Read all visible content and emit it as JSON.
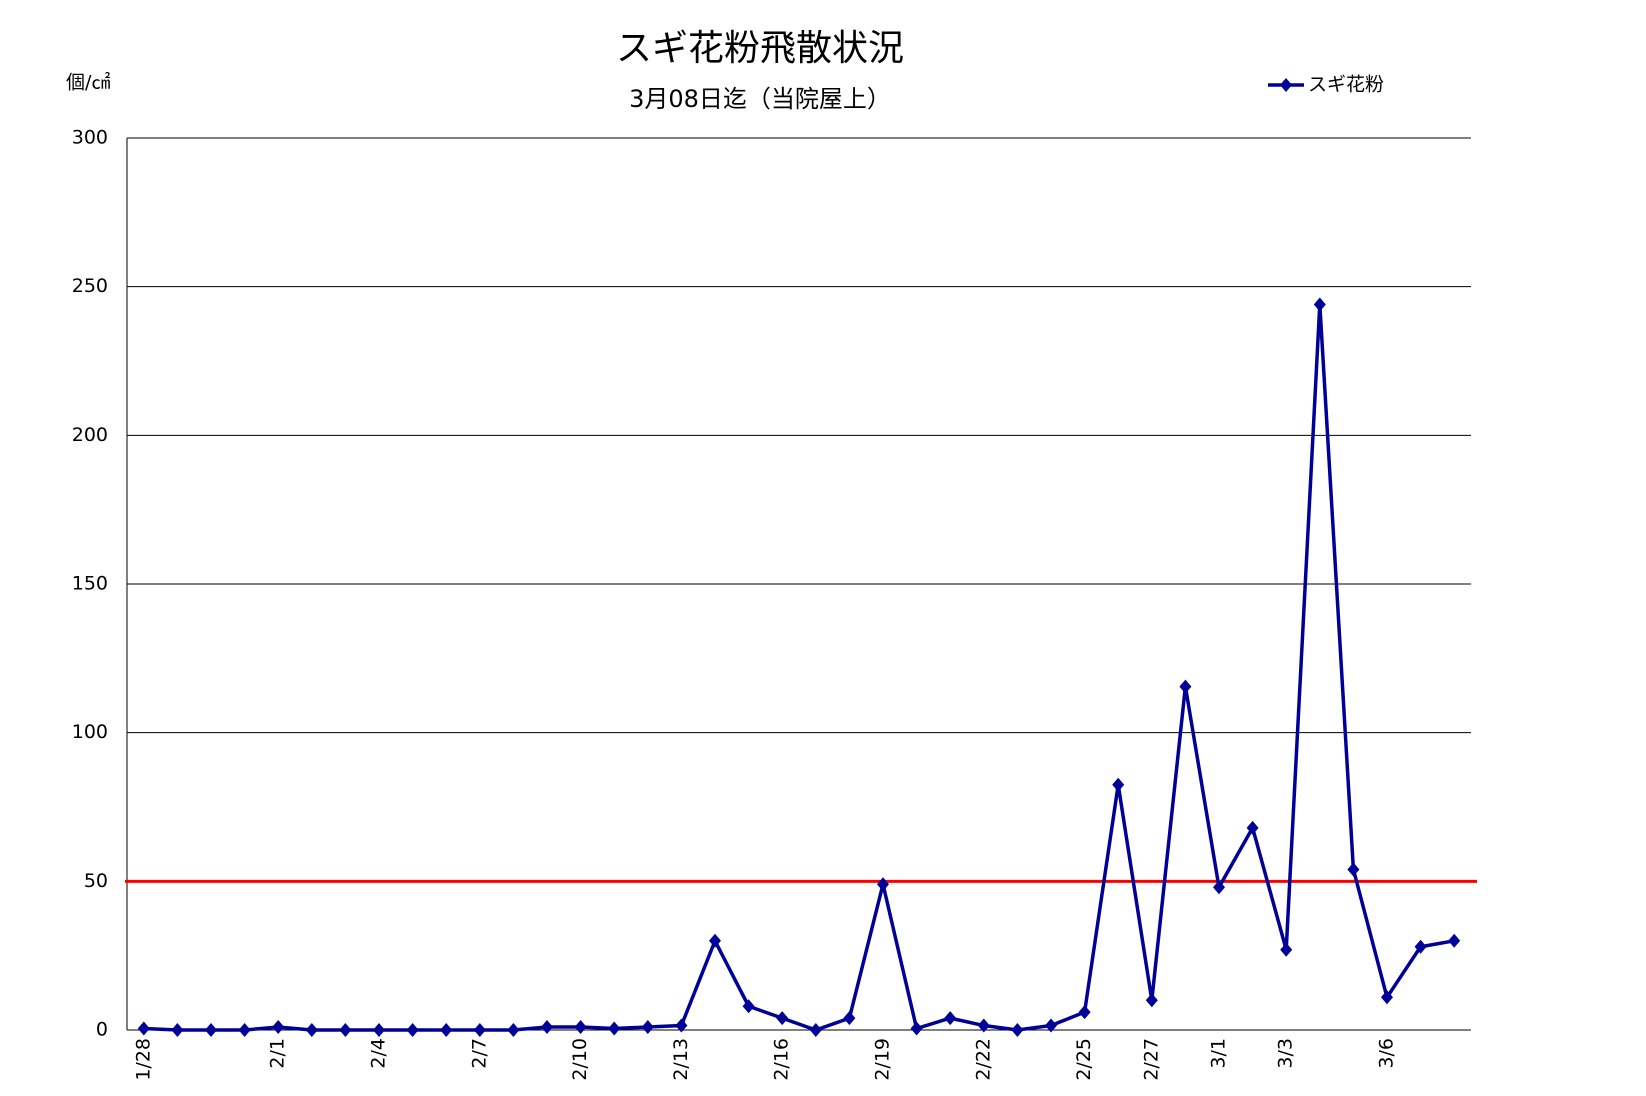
{
  "chart_data": {
    "type": "line",
    "title": "スギ花粉飛散状況",
    "subtitle": "3月08日迄（当院屋上）",
    "y_label": "個/㎠",
    "categories": [
      "1/28",
      null,
      null,
      null,
      "2/1",
      null,
      null,
      "2/4",
      null,
      null,
      "2/7",
      null,
      null,
      "2/10",
      null,
      null,
      "2/13",
      null,
      null,
      "2/16",
      null,
      null,
      "2/19",
      null,
      null,
      "2/22",
      null,
      null,
      "2/25",
      null,
      "2/27",
      null,
      "3/1",
      null,
      "3/3",
      null,
      null,
      "3/6",
      null,
      null
    ],
    "series": [
      {
        "name": "スギ花粉",
        "color": "#000099",
        "values": [
          0.5,
          0,
          0,
          0,
          1,
          0,
          0,
          0,
          0,
          0,
          0,
          0,
          1,
          1,
          0.5,
          1,
          1.5,
          30,
          8,
          4,
          0,
          4,
          49,
          0.5,
          4,
          1.5,
          0,
          1.5,
          6,
          82.5,
          10,
          115.5,
          48,
          68,
          27,
          244,
          54,
          11,
          28,
          30
        ]
      }
    ],
    "reference_line": {
      "value": 50,
      "color": "#ff0000"
    },
    "ylim": [
      0,
      300
    ],
    "yticks": [
      0,
      50,
      100,
      150,
      200,
      250,
      300
    ],
    "grid": true,
    "legend": "top-right"
  }
}
